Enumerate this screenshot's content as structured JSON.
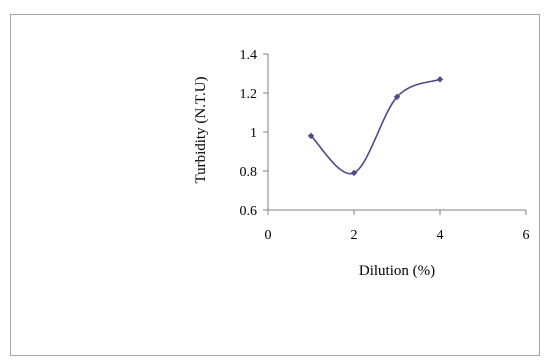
{
  "chart_data": {
    "type": "line",
    "title": "",
    "xlabel": "Dilution (%)",
    "ylabel": "Turbidity (N.T.U)",
    "xlim": [
      0,
      6
    ],
    "ylim": [
      0.6,
      1.4
    ],
    "x_ticks": [
      "0",
      "2",
      "4",
      "6"
    ],
    "y_ticks": [
      "0.6",
      "0.8",
      "1",
      "1.2",
      "1.4"
    ],
    "grid": false,
    "legend": "none",
    "smooth": true,
    "series": [
      {
        "color": "#4a4a8c",
        "x": [
          1,
          2,
          3,
          4
        ],
        "y": [
          0.98,
          0.79,
          1.18,
          1.27
        ]
      }
    ]
  }
}
